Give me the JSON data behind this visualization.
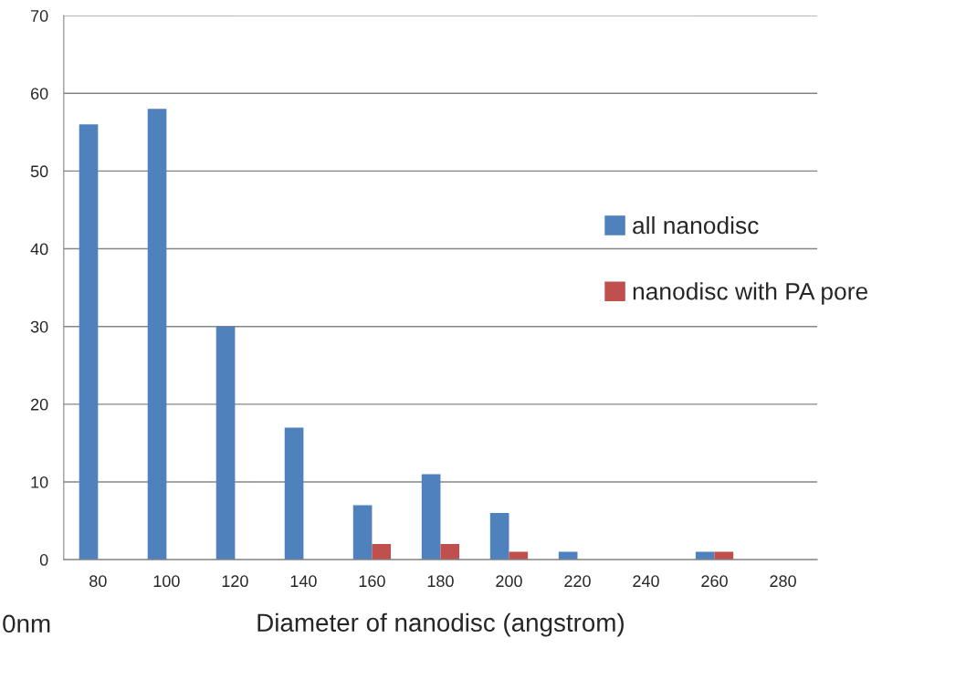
{
  "chart_data": {
    "type": "bar",
    "xlabel": "Diameter of nanodisc (angstrom)",
    "categories": [
      "80",
      "100",
      "120",
      "140",
      "160",
      "180",
      "200",
      "220",
      "240",
      "260",
      "280"
    ],
    "series": [
      {
        "name": "all nanodisc",
        "color": "#4f81bd",
        "values": [
          56,
          58,
          30,
          17,
          7,
          11,
          6,
          1,
          0,
          1,
          0
        ]
      },
      {
        "name": "nanodisc with PA pore",
        "color": "#c0504d",
        "values": [
          0,
          0,
          0,
          0,
          2,
          2,
          1,
          0,
          0,
          1,
          0
        ]
      }
    ],
    "ylim": [
      0,
      70
    ],
    "yticks": [
      0,
      10,
      20,
      30,
      40,
      50,
      60,
      70
    ],
    "grid": "y",
    "legend": "right",
    "annotations": [
      "0nm"
    ]
  }
}
